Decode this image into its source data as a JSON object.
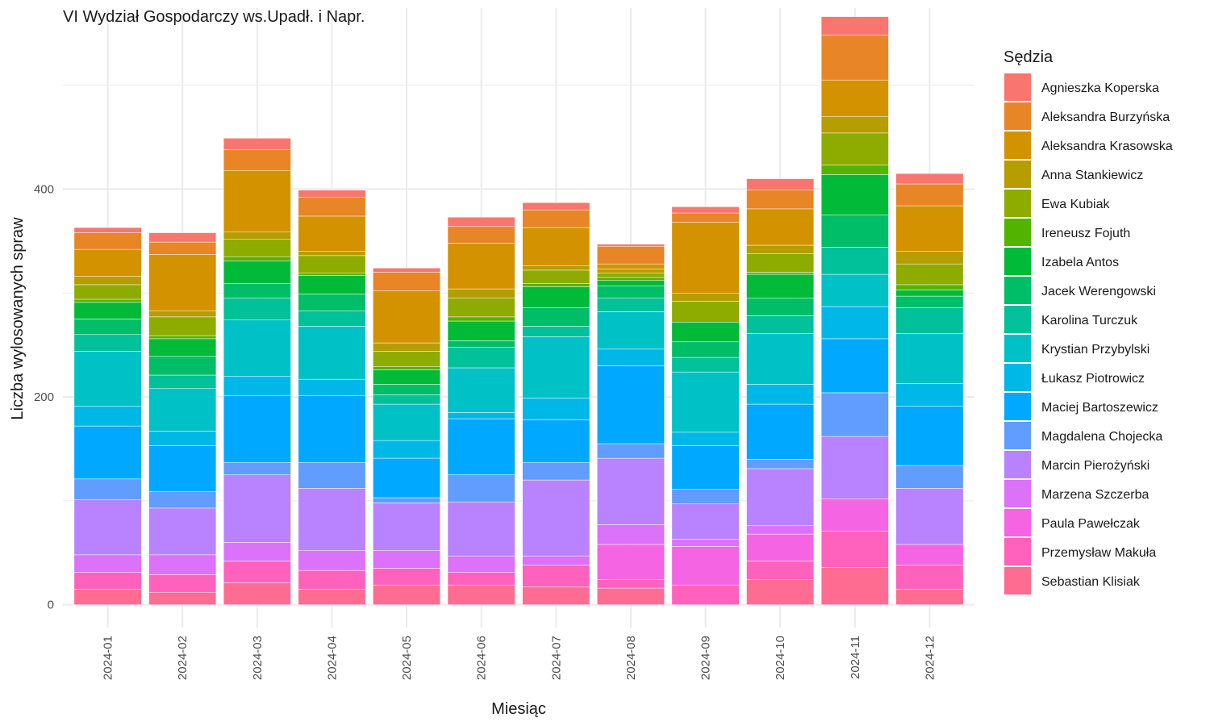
{
  "chart_data": {
    "type": "bar",
    "stacked": true,
    "title": "VI Wydział Gospodarczy ws.Upadł. i Napr.",
    "xlabel": "Miesiąc",
    "ylabel": "Liczba wylosowanych spraw",
    "ylim": [
      -22,
      582
    ],
    "yticks": [
      0,
      200,
      400
    ],
    "grid": true,
    "legend_title": "Sędzia",
    "legend_placement": "right",
    "categories": [
      "2024-01",
      "2024-02",
      "2024-03",
      "2024-04",
      "2024-05",
      "2024-06",
      "2024-07",
      "2024-08",
      "2024-09",
      "2024-10",
      "2024-11",
      "2024-12"
    ],
    "series": [
      {
        "name": "Sebastian Klisiak",
        "color": "#FF6C91",
        "values": [
          15,
          12,
          21,
          15,
          19,
          19,
          17,
          16,
          0,
          24,
          36,
          15
        ]
      },
      {
        "name": "Przemysław Makuła",
        "color": "#FF62BC",
        "values": [
          16,
          17,
          21,
          18,
          16,
          12,
          21,
          8,
          19,
          18,
          35,
          23
        ]
      },
      {
        "name": "Paula Pawełczak",
        "color": "#F564E3",
        "values": [
          0,
          0,
          0,
          0,
          0,
          0,
          0,
          34,
          37,
          26,
          31,
          20
        ]
      },
      {
        "name": "Marzena Szczerba",
        "color": "#DC71FA",
        "values": [
          17,
          19,
          18,
          19,
          17,
          16,
          9,
          19,
          7,
          8,
          0,
          0
        ]
      },
      {
        "name": "Marcin Pierożyński",
        "color": "#B983FF",
        "values": [
          53,
          45,
          65,
          60,
          46,
          52,
          73,
          64,
          34,
          55,
          60,
          54
        ]
      },
      {
        "name": "Magdalena Chojecka",
        "color": "#619CFF",
        "values": [
          20,
          16,
          12,
          25,
          5,
          26,
          17,
          14,
          14,
          9,
          42,
          22
        ]
      },
      {
        "name": "Maciej Bartoszewicz",
        "color": "#00A9FF",
        "values": [
          51,
          44,
          64,
          64,
          38,
          54,
          41,
          75,
          42,
          53,
          52,
          57
        ]
      },
      {
        "name": "Łukasz Piotrowicz",
        "color": "#00B8E7",
        "values": [
          19,
          14,
          19,
          16,
          17,
          6,
          21,
          16,
          13,
          19,
          31,
          22
        ]
      },
      {
        "name": "Krystian Przybylski",
        "color": "#00C1C6",
        "values": [
          53,
          41,
          54,
          51,
          35,
          43,
          59,
          36,
          58,
          49,
          31,
          48
        ]
      },
      {
        "name": "Karolina Turczuk",
        "color": "#00C19A",
        "values": [
          16,
          13,
          21,
          15,
          9,
          20,
          10,
          13,
          14,
          17,
          26,
          25
        ]
      },
      {
        "name": "Jacek Werengowski",
        "color": "#00BE67",
        "values": [
          15,
          18,
          14,
          16,
          10,
          6,
          18,
          12,
          15,
          17,
          31,
          11
        ]
      },
      {
        "name": "Izabela Antos",
        "color": "#00BA38",
        "values": [
          16,
          17,
          22,
          18,
          14,
          19,
          20,
          5,
          19,
          23,
          39,
          6
        ]
      },
      {
        "name": "Ireneusz Fojuth",
        "color": "#53B400",
        "values": [
          3,
          3,
          4,
          2,
          3,
          4,
          3,
          3,
          0,
          2,
          9,
          5
        ]
      },
      {
        "name": "Ewa Kubiak",
        "color": "#8EAB00",
        "values": [
          14,
          18,
          17,
          17,
          15,
          18,
          13,
          4,
          20,
          18,
          31,
          20
        ]
      },
      {
        "name": "Anna Stankiewicz",
        "color": "#B69D00",
        "values": [
          8,
          6,
          7,
          4,
          8,
          9,
          4,
          4,
          8,
          8,
          16,
          12
        ]
      },
      {
        "name": "Aleksandra Krasowska",
        "color": "#D39200",
        "values": [
          26,
          54,
          59,
          34,
          50,
          44,
          37,
          5,
          68,
          35,
          35,
          44
        ]
      },
      {
        "name": "Aleksandra Burzyńska",
        "color": "#E88526",
        "values": [
          16,
          12,
          20,
          18,
          18,
          16,
          17,
          17,
          9,
          18,
          43,
          21
        ]
      },
      {
        "name": "Agnieszka Koperska",
        "color": "#F8766D",
        "values": [
          5,
          9,
          11,
          7,
          4,
          9,
          7,
          2,
          6,
          11,
          18,
          10
        ]
      }
    ],
    "legend_order": [
      "Agnieszka Koperska",
      "Aleksandra Burzyńska",
      "Aleksandra Krasowska",
      "Anna Stankiewicz",
      "Ewa Kubiak",
      "Ireneusz Fojuth",
      "Izabela Antos",
      "Jacek Werengowski",
      "Karolina Turczuk",
      "Krystian Przybylski",
      "Łukasz Piotrowicz",
      "Maciej Bartoszewicz",
      "Magdalena Chojecka",
      "Marcin Pierożyński",
      "Marzena Szczerba",
      "Paula Pawełczak",
      "Przemysław Makuła",
      "Sebastian Klisiak"
    ]
  }
}
